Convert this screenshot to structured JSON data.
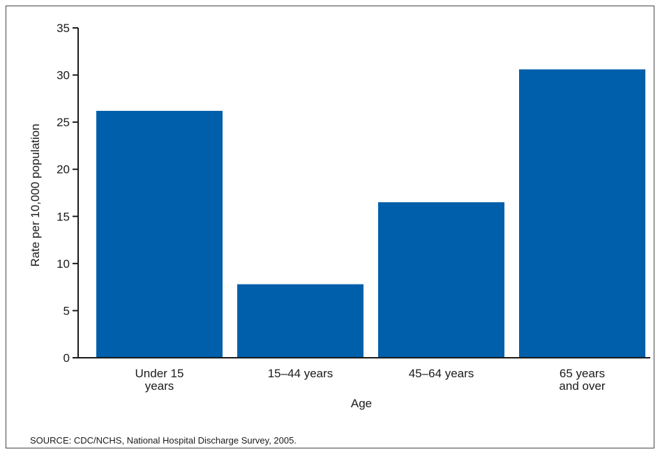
{
  "chart_data": {
    "type": "bar",
    "categories": [
      [
        "Under 15",
        "years"
      ],
      [
        "15–44 years"
      ],
      [
        "45–64 years"
      ],
      [
        "65 years",
        "and over"
      ]
    ],
    "values": [
      26.2,
      7.8,
      16.5,
      30.6
    ],
    "xlabel": "Age",
    "ylabel": "Rate per 10,000 population",
    "ylim": [
      0,
      35
    ],
    "yticks": [
      0,
      5,
      10,
      15,
      20,
      25,
      30,
      35
    ],
    "grid": false,
    "bar_color": "#005faa"
  },
  "source_note": "SOURCE: CDC/NCHS, National Hospital Discharge Survey, 2005."
}
